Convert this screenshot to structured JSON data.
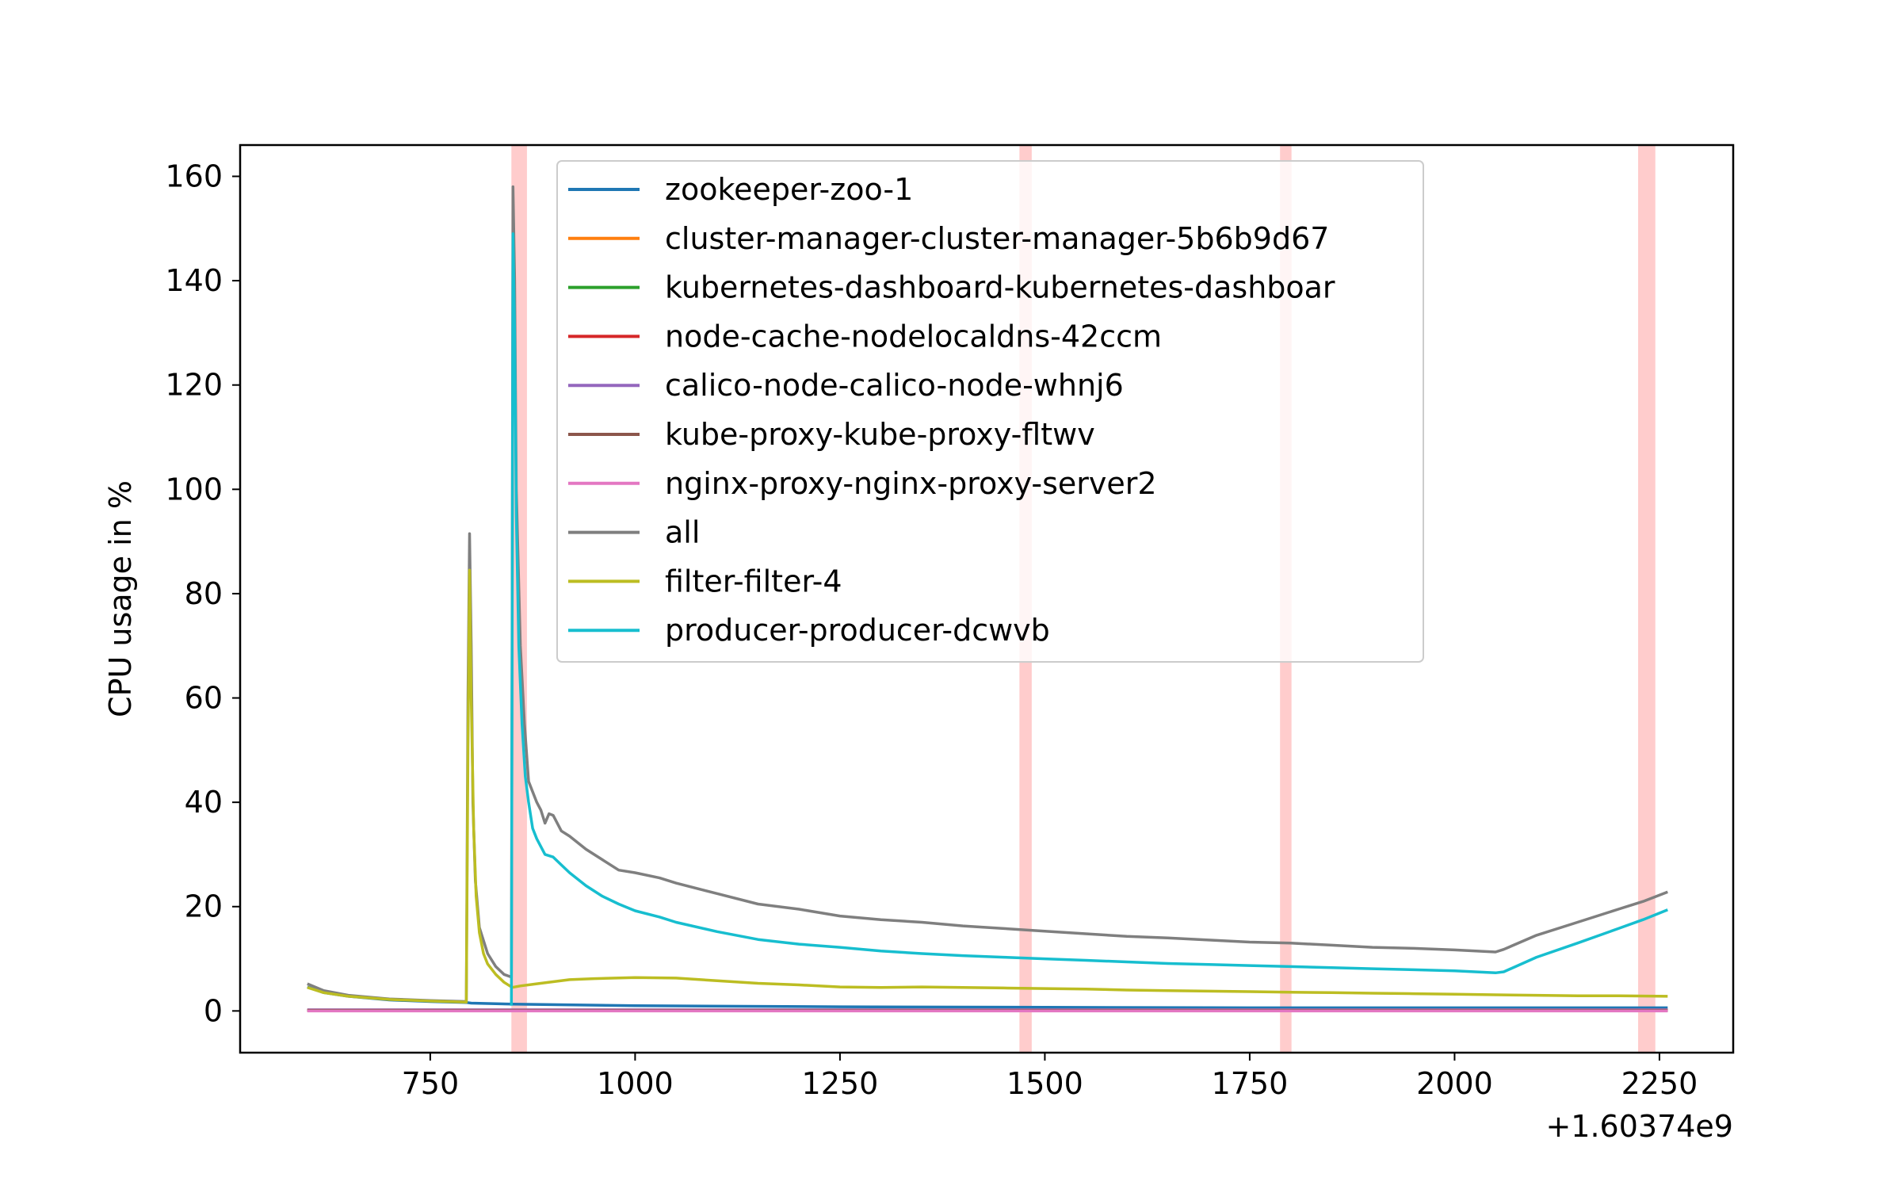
{
  "chart_data": {
    "type": "line",
    "title": "",
    "xlabel": "",
    "ylabel": "CPU usage in %",
    "x_offset_label": "+1.60374e9",
    "xlim": [
      518,
      2340
    ],
    "ylim": [
      -8,
      166
    ],
    "xticks": [
      750,
      1000,
      1250,
      1500,
      1750,
      2000,
      2250
    ],
    "xtick_labels": [
      "750",
      "1000",
      "1250",
      "1500",
      "1750",
      "2000",
      "2250"
    ],
    "yticks": [
      0,
      20,
      40,
      60,
      80,
      100,
      120,
      140,
      160
    ],
    "ytick_labels": [
      "0",
      "20",
      "40",
      "60",
      "80",
      "100",
      "120",
      "140",
      "160"
    ],
    "grid": false,
    "legend_position": "upper-center",
    "highlight_bands": [
      {
        "x0": 849,
        "x1": 868,
        "color": "#ffcccc"
      },
      {
        "x0": 1469,
        "x1": 1484,
        "color": "#ffcccc"
      },
      {
        "x0": 1787,
        "x1": 1801,
        "color": "#ffcccc"
      },
      {
        "x0": 2224,
        "x1": 2245,
        "color": "#ffcccc"
      }
    ],
    "series": [
      {
        "name": "zookeeper-zoo-1",
        "color": "#1f77b4",
        "x": [
          600,
          620,
          650,
          700,
          750,
          795,
          800,
          850,
          1000,
          1250,
          1500,
          1750,
          2000,
          2260
        ],
        "y": [
          4.6,
          3.5,
          2.8,
          2.1,
          1.8,
          1.6,
          1.5,
          1.3,
          1.0,
          0.8,
          0.7,
          0.6,
          0.6,
          0.6
        ]
      },
      {
        "name": "cluster-manager-cluster-manager-5b6b9d67",
        "color": "#ff7f0e",
        "x": [
          600,
          2260
        ],
        "y": [
          0.2,
          0.2
        ]
      },
      {
        "name": "kubernetes-dashboard-kubernetes-dashboar",
        "color": "#2ca02c",
        "x": [
          600,
          2260
        ],
        "y": [
          0.1,
          0.1
        ]
      },
      {
        "name": "node-cache-nodelocaldns-42ccm",
        "color": "#d62728",
        "x": [
          600,
          2260
        ],
        "y": [
          0.1,
          0.1
        ]
      },
      {
        "name": "calico-node-calico-node-whnj6",
        "color": "#9467bd",
        "x": [
          600,
          2260
        ],
        "y": [
          0.2,
          0.2
        ]
      },
      {
        "name": "kube-proxy-kube-proxy-fltwv",
        "color": "#8c564b",
        "x": [
          600,
          2260
        ],
        "y": [
          0.1,
          0.1
        ]
      },
      {
        "name": "nginx-proxy-nginx-proxy-server2",
        "color": "#e377c2",
        "x": [
          600,
          2260
        ],
        "y": [
          0.0,
          0.0
        ]
      },
      {
        "name": "all",
        "color": "#7f7f7f",
        "x": [
          600,
          620,
          650,
          700,
          750,
          794,
          796,
          798,
          800,
          802,
          805,
          810,
          820,
          830,
          840,
          849,
          851,
          853,
          855,
          860,
          865,
          870,
          880,
          885,
          890,
          895,
          900,
          910,
          920,
          940,
          960,
          980,
          1000,
          1030,
          1050,
          1100,
          1150,
          1200,
          1250,
          1300,
          1350,
          1400,
          1450,
          1500,
          1550,
          1600,
          1650,
          1700,
          1750,
          1800,
          1850,
          1900,
          1950,
          2000,
          2050,
          2060,
          2100,
          2150,
          2200,
          2230,
          2260
        ],
        "y": [
          5.2,
          3.9,
          3.0,
          2.3,
          2.0,
          1.8,
          60,
          91.5,
          70,
          40,
          25,
          16,
          11,
          8.5,
          7.0,
          6.5,
          158,
          140,
          100,
          70,
          55,
          44,
          40,
          38.5,
          36,
          37.8,
          37.5,
          34.5,
          33.5,
          31,
          29,
          27,
          26.5,
          25.5,
          24.5,
          22.5,
          20.5,
          19.5,
          18.2,
          17.5,
          17.0,
          16.3,
          15.8,
          15.3,
          14.8,
          14.3,
          14.0,
          13.6,
          13.2,
          13.0,
          12.6,
          12.2,
          12.0,
          11.7,
          11.3,
          11.8,
          14.5,
          17.0,
          19.5,
          21.0,
          22.8
        ]
      },
      {
        "name": "filter-filter-4",
        "color": "#bcbd22",
        "x": [
          600,
          620,
          650,
          700,
          750,
          794,
          796,
          798,
          800,
          803,
          806,
          810,
          815,
          820,
          830,
          840,
          850,
          860,
          880,
          900,
          920,
          950,
          1000,
          1050,
          1100,
          1150,
          1200,
          1250,
          1300,
          1350,
          1400,
          1450,
          1500,
          1550,
          1600,
          1650,
          1700,
          1750,
          1800,
          1850,
          1900,
          1950,
          2000,
          2050,
          2100,
          2150,
          2200,
          2260
        ],
        "y": [
          4.5,
          3.5,
          2.8,
          2.2,
          1.9,
          1.7,
          50,
          84.5,
          60,
          35,
          22,
          15,
          11,
          9,
          7,
          5.5,
          4.5,
          4.8,
          5.2,
          5.6,
          6.0,
          6.2,
          6.4,
          6.3,
          5.8,
          5.3,
          5.0,
          4.6,
          4.5,
          4.6,
          4.5,
          4.4,
          4.3,
          4.2,
          4.0,
          3.9,
          3.8,
          3.7,
          3.6,
          3.5,
          3.4,
          3.3,
          3.2,
          3.1,
          3.0,
          2.9,
          2.9,
          2.8
        ]
      },
      {
        "name": "producer-producer-dcwvb",
        "color": "#17becf",
        "x": [
          849,
          851,
          853,
          855,
          858,
          862,
          866,
          870,
          875,
          880,
          890,
          900,
          910,
          920,
          940,
          960,
          980,
          1000,
          1030,
          1050,
          1100,
          1150,
          1200,
          1250,
          1300,
          1350,
          1400,
          1450,
          1500,
          1550,
          1600,
          1650,
          1700,
          1750,
          1800,
          1850,
          1900,
          1950,
          2000,
          2050,
          2060,
          2100,
          2150,
          2200,
          2230,
          2260
        ],
        "y": [
          1.0,
          149,
          130,
          95,
          70,
          55,
          45,
          40,
          35,
          33,
          30,
          29.5,
          28,
          26.5,
          24,
          22,
          20.5,
          19.2,
          18,
          17,
          15.2,
          13.7,
          12.8,
          12.2,
          11.5,
          11.0,
          10.6,
          10.3,
          10.0,
          9.7,
          9.4,
          9.1,
          8.9,
          8.7,
          8.5,
          8.3,
          8.1,
          7.9,
          7.7,
          7.3,
          7.5,
          10.3,
          13.0,
          15.8,
          17.5,
          19.4
        ]
      }
    ]
  }
}
